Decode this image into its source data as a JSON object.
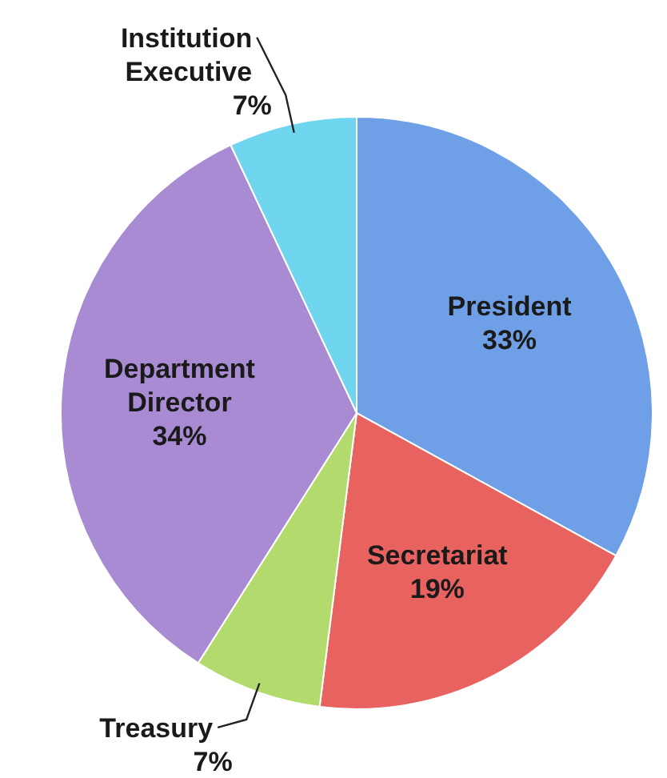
{
  "chart_data": {
    "type": "pie",
    "categories": [
      "President",
      "Secretariat",
      "Treasury",
      "Department Director",
      "Institution Executive"
    ],
    "values": [
      33,
      19,
      7,
      34,
      7
    ],
    "value_labels": [
      "33%",
      "19%",
      "7%",
      "34%",
      "7%"
    ],
    "colors": [
      "#6f9fe6",
      "#e8625f",
      "#b3da6c",
      "#a88bd2",
      "#70d6f0"
    ],
    "legend": false
  }
}
